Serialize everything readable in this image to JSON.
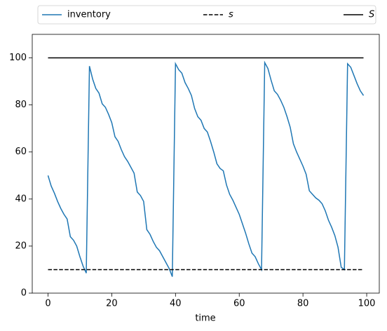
{
  "chart_data": {
    "type": "line",
    "xlabel": "time",
    "xlim": [
      -4.95,
      103.95
    ],
    "xticks": [
      0,
      20,
      40,
      60,
      80,
      100
    ],
    "ylim": [
      0,
      110
    ],
    "yticks": [
      0,
      20,
      40,
      60,
      80,
      100
    ],
    "legend": "top",
    "series": [
      {
        "name": "inventory",
        "color": "#1f77b4",
        "linestyle": "solid",
        "x": [
          0,
          1,
          2,
          3,
          4,
          5,
          6,
          7,
          8,
          9,
          10,
          11,
          12,
          13,
          14,
          15,
          16,
          17,
          18,
          19,
          20,
          21,
          22,
          23,
          24,
          25,
          26,
          27,
          28,
          29,
          30,
          31,
          32,
          33,
          34,
          35,
          36,
          37,
          38,
          39,
          40,
          41,
          42,
          43,
          44,
          45,
          46,
          47,
          48,
          49,
          50,
          51,
          52,
          53,
          54,
          55,
          56,
          57,
          58,
          59,
          60,
          61,
          62,
          63,
          64,
          65,
          66,
          67,
          68,
          69,
          70,
          71,
          72,
          73,
          74,
          75,
          76,
          77,
          78,
          79,
          80,
          81,
          82,
          83,
          84,
          85,
          86,
          87,
          88,
          89,
          90,
          91,
          92,
          93,
          94,
          95,
          96,
          97,
          98,
          99
        ],
        "values": [
          50,
          45.5,
          42.5,
          39,
          36,
          33.5,
          31.5,
          24,
          22.5,
          20,
          15.5,
          11.5,
          8.5,
          96.5,
          91,
          87,
          85,
          80.5,
          79,
          76,
          72.5,
          66.5,
          64.5,
          61,
          58,
          56,
          53.5,
          51,
          43,
          41.5,
          39,
          27,
          25,
          22,
          19.5,
          18,
          15.5,
          13,
          10.5,
          7,
          97.5,
          95,
          93.5,
          89.5,
          87,
          84,
          78.5,
          75,
          73.5,
          70,
          68.5,
          64.5,
          60,
          55,
          53,
          52,
          46,
          42,
          39.5,
          36.5,
          33.5,
          29.5,
          25.5,
          21,
          17,
          15.5,
          12.5,
          10,
          98,
          95.5,
          90.5,
          86,
          84.5,
          82,
          79,
          75,
          70.5,
          63.5,
          60,
          57,
          54,
          50.5,
          43.5,
          42,
          40.5,
          39.5,
          38,
          35,
          31,
          28,
          24.5,
          19.5,
          11,
          10,
          97.5,
          96,
          92.5,
          89,
          86,
          84
        ]
      },
      {
        "name": "s",
        "color": "#000000",
        "linestyle": "dashed",
        "x": [
          0,
          99
        ],
        "values": [
          10,
          10
        ]
      },
      {
        "name": "S",
        "color": "#000000",
        "linestyle": "solid",
        "x": [
          0,
          99
        ],
        "values": [
          100,
          100
        ]
      }
    ]
  }
}
